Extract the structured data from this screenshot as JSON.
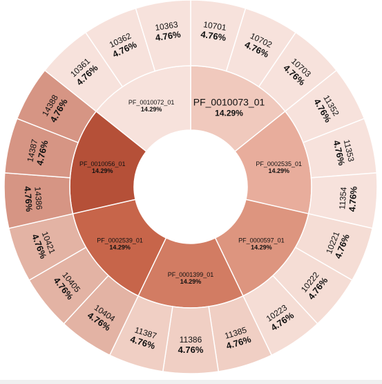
{
  "chart_data": {
    "type": "sunburst",
    "title": "",
    "colors": {
      "PF_0010072_01": "#f7e2dc",
      "PF_0010073_01": "#f0c9bd",
      "PF_0002535_01": "#e8ad9c",
      "PF_0000597_01": "#dd957f",
      "PF_0001399_01": "#d27c63",
      "PF_0002539_01": "#c7654a",
      "PF_0010056_01": "#b55038",
      "PF_0010072_01_leaf": "#f7e2dc",
      "PF_0010073_01_leaf": "#f7e2dc",
      "PF_0002535_01_leaf": "#f7e2dc",
      "PF_0000597_01_leaf": "#f5ddd5",
      "PF_0001399_01_leaf": "#f0cfc4",
      "PF_0002539_01_leaf": "#e3b3a4",
      "PF_0010056_01_leaf": "#d69584",
      "stroke": "#ffffff"
    },
    "inner": [
      {
        "label": "PF_0010073_01",
        "pct": "14.29%",
        "value": 14.29
      },
      {
        "label": "PF_0002535_01",
        "pct": "14.29%",
        "value": 14.29
      },
      {
        "label": "PF_0000597_01",
        "pct": "14.29%",
        "value": 14.29
      },
      {
        "label": "PF_0001399_01",
        "pct": "14.29%",
        "value": 14.29
      },
      {
        "label": "PF_0002539_01",
        "pct": "14.29%",
        "value": 14.29
      },
      {
        "label": "PF_0010056_01",
        "pct": "14.29%",
        "value": 14.29
      },
      {
        "label": "PF_0010072_01",
        "pct": "14.29%",
        "value": 14.29
      }
    ],
    "outer": [
      {
        "label": "10701",
        "pct": "4.76%",
        "value": 4.76,
        "parent": "PF_0010073_01"
      },
      {
        "label": "10702",
        "pct": "4.76%",
        "value": 4.76,
        "parent": "PF_0010073_01"
      },
      {
        "label": "10703",
        "pct": "4.76%",
        "value": 4.76,
        "parent": "PF_0010073_01"
      },
      {
        "label": "11352",
        "pct": "4.76%",
        "value": 4.76,
        "parent": "PF_0002535_01"
      },
      {
        "label": "11353",
        "pct": "4.76%",
        "value": 4.76,
        "parent": "PF_0002535_01"
      },
      {
        "label": "11354",
        "pct": "4.76%",
        "value": 4.76,
        "parent": "PF_0002535_01"
      },
      {
        "label": "10221",
        "pct": "4.76%",
        "value": 4.76,
        "parent": "PF_0000597_01"
      },
      {
        "label": "10222",
        "pct": "4.76%",
        "value": 4.76,
        "parent": "PF_0000597_01"
      },
      {
        "label": "10223",
        "pct": "4.76%",
        "value": 4.76,
        "parent": "PF_0000597_01"
      },
      {
        "label": "11385",
        "pct": "4.76%",
        "value": 4.76,
        "parent": "PF_0001399_01"
      },
      {
        "label": "11386",
        "pct": "4.76%",
        "value": 4.76,
        "parent": "PF_0001399_01"
      },
      {
        "label": "11387",
        "pct": "4.76%",
        "value": 4.76,
        "parent": "PF_0001399_01"
      },
      {
        "label": "10404",
        "pct": "4.76%",
        "value": 4.76,
        "parent": "PF_0002539_01"
      },
      {
        "label": "10405",
        "pct": "4.76%",
        "value": 4.76,
        "parent": "PF_0002539_01"
      },
      {
        "label": "10421",
        "pct": "4.76%",
        "value": 4.76,
        "parent": "PF_0002539_01"
      },
      {
        "label": "14386",
        "pct": "4.76%",
        "value": 4.76,
        "parent": "PF_0010056_01"
      },
      {
        "label": "14387",
        "pct": "4.76%",
        "value": 4.76,
        "parent": "PF_0010056_01"
      },
      {
        "label": "14388",
        "pct": "4.76%",
        "value": 4.76,
        "parent": "PF_0010056_01"
      },
      {
        "label": "10361",
        "pct": "4.76%",
        "value": 4.76,
        "parent": "PF_0010072_01"
      },
      {
        "label": "10362",
        "pct": "4.76%",
        "value": 4.76,
        "parent": "PF_0010072_01"
      },
      {
        "label": "10363",
        "pct": "4.76%",
        "value": 4.76,
        "parent": "PF_0010072_01"
      }
    ]
  }
}
